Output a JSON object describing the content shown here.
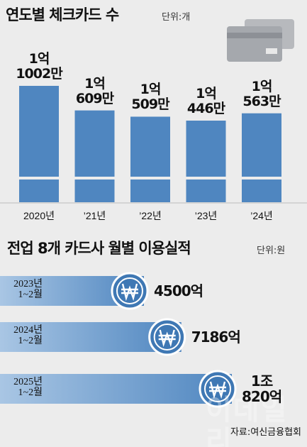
{
  "chart_data": [
    {
      "type": "bar",
      "title": "연도별 체크카드 수",
      "subtitle": "단위:개",
      "color": "#4f86c0",
      "categories": [
        "2020년",
        "’21년",
        "’22년",
        "’23년",
        "’24년"
      ],
      "values": [
        110020000,
        106090000,
        105090000,
        104460000,
        105630000
      ],
      "value_labels": [
        "1억\n1002만",
        "1억\n609만",
        "1억\n509만",
        "1억\n446만",
        "1억\n563만"
      ]
    },
    {
      "type": "hbar",
      "title": "전업 8개 카드사 월별 이용실적",
      "subtitle": "단위:원",
      "color": "#4f86c0",
      "categories": [
        "2023년\n1~2월",
        "2024년\n1~2월",
        "2025년\n1~2월"
      ],
      "values": [
        450000000000,
        718600000000,
        1082000000000
      ],
      "value_labels": [
        "4500억",
        "7186억",
        "1조\n820억"
      ]
    }
  ],
  "source": "자료:여신금융협회",
  "watermark": "이데일리"
}
